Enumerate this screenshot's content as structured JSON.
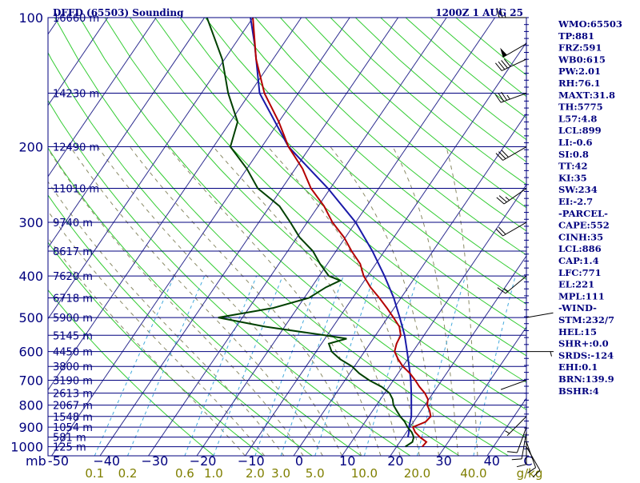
{
  "chart_data": {
    "type": "skew-t",
    "header": {
      "station": "DFFD (65503) Sounding",
      "time": "1200Z  1 AUG 25"
    },
    "pressure_ticks": [
      {
        "p": 100,
        "label": "100"
      },
      {
        "p": 200,
        "label": "200"
      },
      {
        "p": 300,
        "label": "300"
      },
      {
        "p": 400,
        "label": "400"
      },
      {
        "p": 500,
        "label": "500"
      },
      {
        "p": 600,
        "label": "600"
      },
      {
        "p": 700,
        "label": "700"
      },
      {
        "p": 800,
        "label": "800"
      },
      {
        "p": 900,
        "label": "900"
      },
      {
        "p": 1000,
        "label": "1000"
      }
    ],
    "height_labels": [
      {
        "p": 100,
        "label": "16660 m"
      },
      {
        "p": 150,
        "label": "14230 m"
      },
      {
        "p": 200,
        "label": "12490 m"
      },
      {
        "p": 250,
        "label": "11010 m"
      },
      {
        "p": 300,
        "label": "9740 m"
      },
      {
        "p": 350,
        "label": "8617 m"
      },
      {
        "p": 400,
        "label": "7620 m"
      },
      {
        "p": 450,
        "label": "6718 m"
      },
      {
        "p": 500,
        "label": "5900 m"
      },
      {
        "p": 550,
        "label": "5145 m"
      },
      {
        "p": 600,
        "label": "4450 m"
      },
      {
        "p": 650,
        "label": "3800 m"
      },
      {
        "p": 700,
        "label": "3190 m"
      },
      {
        "p": 750,
        "label": "2613 m"
      },
      {
        "p": 800,
        "label": "2067 m"
      },
      {
        "p": 850,
        "label": "1548 m"
      },
      {
        "p": 900,
        "label": "1054 m"
      },
      {
        "p": 950,
        "label": "581 m"
      },
      {
        "p": 1000,
        "label": "125 m"
      }
    ],
    "x_axis_unit": "mb",
    "temperature_ticks": [
      {
        "t": -50,
        "label": "-50"
      },
      {
        "t": -40,
        "label": "−40"
      },
      {
        "t": -30,
        "label": "−30"
      },
      {
        "t": -20,
        "label": "−20"
      },
      {
        "t": -10,
        "label": "−10"
      },
      {
        "t": 0,
        "label": "0"
      },
      {
        "t": 10,
        "label": "10"
      },
      {
        "t": 20,
        "label": "20"
      },
      {
        "t": 30,
        "label": "30"
      },
      {
        "t": 40,
        "label": "40"
      }
    ],
    "temperature_unit": "C",
    "mixing_ratio_ticks": [
      {
        "w": 0.1,
        "label": "0.1"
      },
      {
        "w": 0.2,
        "label": "0.2"
      },
      {
        "w": 0.6,
        "label": "0.6"
      },
      {
        "w": 1.0,
        "label": "1.0"
      },
      {
        "w": 2.0,
        "label": "2.0"
      },
      {
        "w": 3.0,
        "label": "3.0"
      },
      {
        "w": 5.0,
        "label": "5.0"
      },
      {
        "w": 10.0,
        "label": "10.0"
      },
      {
        "w": 20.0,
        "label": "20.0"
      },
      {
        "w": 40.0,
        "label": "40.0"
      }
    ],
    "mixing_ratio_unit": "g/kg",
    "temperature_profile": [
      [
        1000,
        25.3
      ],
      [
        975,
        25.5
      ],
      [
        950,
        23.5
      ],
      [
        925,
        21.8
      ],
      [
        900,
        20.6
      ],
      [
        875,
        22.5
      ],
      [
        850,
        22.8
      ],
      [
        825,
        21.8
      ],
      [
        800,
        20.5
      ],
      [
        775,
        19.8
      ],
      [
        750,
        18.3
      ],
      [
        725,
        16.3
      ],
      [
        700,
        14.5
      ],
      [
        675,
        12.5
      ],
      [
        650,
        10.0
      ],
      [
        625,
        8.0
      ],
      [
        600,
        6.2
      ],
      [
        575,
        5.5
      ],
      [
        550,
        5.2
      ],
      [
        525,
        3.7
      ],
      [
        500,
        1.2
      ],
      [
        475,
        -1.5
      ],
      [
        450,
        -4.5
      ],
      [
        425,
        -7.8
      ],
      [
        400,
        -10.8
      ],
      [
        375,
        -13.2
      ],
      [
        350,
        -16.8
      ],
      [
        325,
        -20.3
      ],
      [
        300,
        -24.8
      ],
      [
        275,
        -28.8
      ],
      [
        250,
        -34.0
      ],
      [
        225,
        -38.5
      ],
      [
        200,
        -44.5
      ],
      [
        175,
        -50.0
      ],
      [
        150,
        -57.0
      ],
      [
        125,
        -63.5
      ],
      [
        100,
        -70.0
      ],
      [
        95,
        -71.5
      ]
    ],
    "dewpoint_profile": [
      [
        1000,
        21.8
      ],
      [
        975,
        22.6
      ],
      [
        950,
        22.2
      ],
      [
        925,
        21.1
      ],
      [
        900,
        19.5
      ],
      [
        875,
        18.2
      ],
      [
        850,
        16.5
      ],
      [
        825,
        15.0
      ],
      [
        800,
        13.5
      ],
      [
        775,
        12.5
      ],
      [
        750,
        11.0
      ],
      [
        725,
        8.5
      ],
      [
        700,
        5.0
      ],
      [
        675,
        2.0
      ],
      [
        650,
        -0.5
      ],
      [
        625,
        -4.0
      ],
      [
        600,
        -6.8
      ],
      [
        575,
        -8.5
      ],
      [
        560,
        -5.5
      ],
      [
        550,
        -10.5
      ],
      [
        525,
        -24.0
      ],
      [
        500,
        -35.0
      ],
      [
        475,
        -25.0
      ],
      [
        450,
        -19.0
      ],
      [
        425,
        -17.0
      ],
      [
        410,
        -15.0
      ],
      [
        400,
        -18.0
      ],
      [
        375,
        -21.5
      ],
      [
        350,
        -24.8
      ],
      [
        325,
        -29.5
      ],
      [
        300,
        -33.5
      ],
      [
        275,
        -38.0
      ],
      [
        250,
        -45.0
      ],
      [
        225,
        -50.0
      ],
      [
        200,
        -56.5
      ],
      [
        175,
        -58.5
      ],
      [
        150,
        -64.5
      ],
      [
        125,
        -70.5
      ],
      [
        100,
        -79.5
      ],
      [
        96,
        -81.0
      ]
    ],
    "parcel_profile": [
      [
        950,
        21.0
      ],
      [
        925,
        20.5
      ],
      [
        900,
        19.8
      ],
      [
        875,
        19.3
      ],
      [
        850,
        18.8
      ],
      [
        800,
        17.2
      ],
      [
        750,
        15.5
      ],
      [
        700,
        13.6
      ],
      [
        650,
        11.3
      ],
      [
        600,
        8.8
      ],
      [
        550,
        6.0
      ],
      [
        500,
        2.5
      ],
      [
        450,
        -1.5
      ],
      [
        400,
        -6.5
      ],
      [
        350,
        -12.5
      ],
      [
        300,
        -20.0
      ],
      [
        250,
        -30.5
      ],
      [
        200,
        -44.5
      ],
      [
        150,
        -58.0
      ],
      [
        115,
        -66.0
      ],
      [
        100,
        -70.5
      ]
    ],
    "wind_barbs": [
      {
        "p": 1000,
        "dir": 150,
        "spd": 10
      },
      {
        "p": 975,
        "dir": 160,
        "spd": 10
      },
      {
        "p": 950,
        "dir": 180,
        "spd": 10
      },
      {
        "p": 925,
        "dir": 190,
        "spd": 10
      },
      {
        "p": 900,
        "dir": 200,
        "spd": 10
      },
      {
        "p": 850,
        "dir": 225,
        "spd": 5
      },
      {
        "p": 700,
        "dir": 250,
        "spd": 0
      },
      {
        "p": 600,
        "dir": 90,
        "spd": 5
      },
      {
        "p": 500,
        "dir": 80,
        "spd": 0
      },
      {
        "p": 400,
        "dir": 230,
        "spd": 15
      },
      {
        "p": 300,
        "dir": 240,
        "spd": 20
      },
      {
        "p": 250,
        "dir": 235,
        "spd": 25
      },
      {
        "p": 200,
        "dir": 240,
        "spd": 30
      },
      {
        "p": 150,
        "dir": 250,
        "spd": 35
      },
      {
        "p": 125,
        "dir": 245,
        "spd": 40
      },
      {
        "p": 115,
        "dir": 240,
        "spd": 50
      },
      {
        "p": 100,
        "dir": 270,
        "spd": 25
      }
    ],
    "indices": [
      "WMO:65503",
      "TP:881",
      "FRZ:591",
      "WB0:615",
      "PW:2.01",
      "RH:76.1",
      "MAXT:31.8",
      "TH:5775",
      "L57:4.8",
      "LCL:899",
      "LI:-0.6",
      "SI:0.8",
      "TT:42",
      "KI:35",
      "SW:234",
      "EI:-2.7",
      "-PARCEL-",
      "CAPE:552",
      "CINH:35",
      "LCL:886",
      "CAP:1.4",
      "LFC:771",
      "EL:221",
      "MPL:111",
      "-WIND-",
      "STM:232/7",
      "HEL:15",
      "SHR+:0.0",
      "SRDS:-124",
      "EHI:0.1",
      "BRN:139.9",
      "BSHR:4"
    ],
    "colors": {
      "frame": "#00007f",
      "isobar": "#00007f",
      "isotherm": "#2d2d8f",
      "dry_adiabat": "#33cc33",
      "moist_adiabat": "#8a8a66",
      "mixing_ratio": "#44aadd",
      "temperature": "#b40000",
      "dewpoint": "#004000",
      "parcel": "#1a1aa8",
      "mixing_label": "#7f7f00"
    }
  }
}
